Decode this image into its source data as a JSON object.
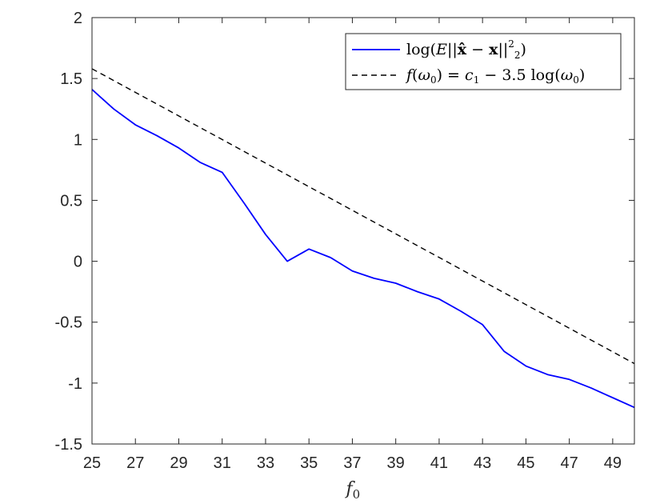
{
  "chart_data": {
    "type": "line",
    "title": "",
    "xlabel": "f0",
    "ylabel": "",
    "xlim": [
      25,
      50
    ],
    "ylim": [
      -1.5,
      2
    ],
    "x_ticks": [
      25,
      27,
      29,
      31,
      33,
      35,
      37,
      39,
      41,
      43,
      45,
      47,
      49
    ],
    "x_tick_labels": [
      "25",
      "27",
      "29",
      "31",
      "33",
      "35",
      "37",
      "39",
      "41",
      "43",
      "45",
      "47",
      "49"
    ],
    "y_ticks": [
      -1.5,
      -1,
      -0.5,
      0,
      0.5,
      1,
      1.5,
      2
    ],
    "y_tick_labels": [
      "-1.5",
      "-1",
      "-0.5",
      "0",
      "0.5",
      "1",
      "1.5",
      "2"
    ],
    "grid": false,
    "legend_position": "top-right",
    "series": [
      {
        "name": "log(E||x̂ − x||²₂)",
        "color": "#0000ff",
        "style": "solid",
        "x": [
          25,
          26,
          27,
          28,
          29,
          30,
          31,
          32,
          33,
          34,
          35,
          36,
          37,
          38,
          39,
          40,
          41,
          42,
          43,
          44,
          45,
          46,
          47,
          48,
          49,
          50
        ],
        "y": [
          1.41,
          1.25,
          1.12,
          1.03,
          0.93,
          0.81,
          0.73,
          0.48,
          0.22,
          0.0,
          0.1,
          0.03,
          -0.08,
          -0.14,
          -0.18,
          -0.25,
          -0.31,
          -0.41,
          -0.52,
          -0.74,
          -0.86,
          -0.93,
          -0.97,
          -1.04,
          -1.12,
          -1.2
        ]
      },
      {
        "name": "f(ω0) = c1 − 3.5 log(ω0)",
        "color": "#000000",
        "style": "dashed",
        "x": [
          25,
          50
        ],
        "y": [
          1.58,
          -0.84
        ]
      }
    ]
  }
}
